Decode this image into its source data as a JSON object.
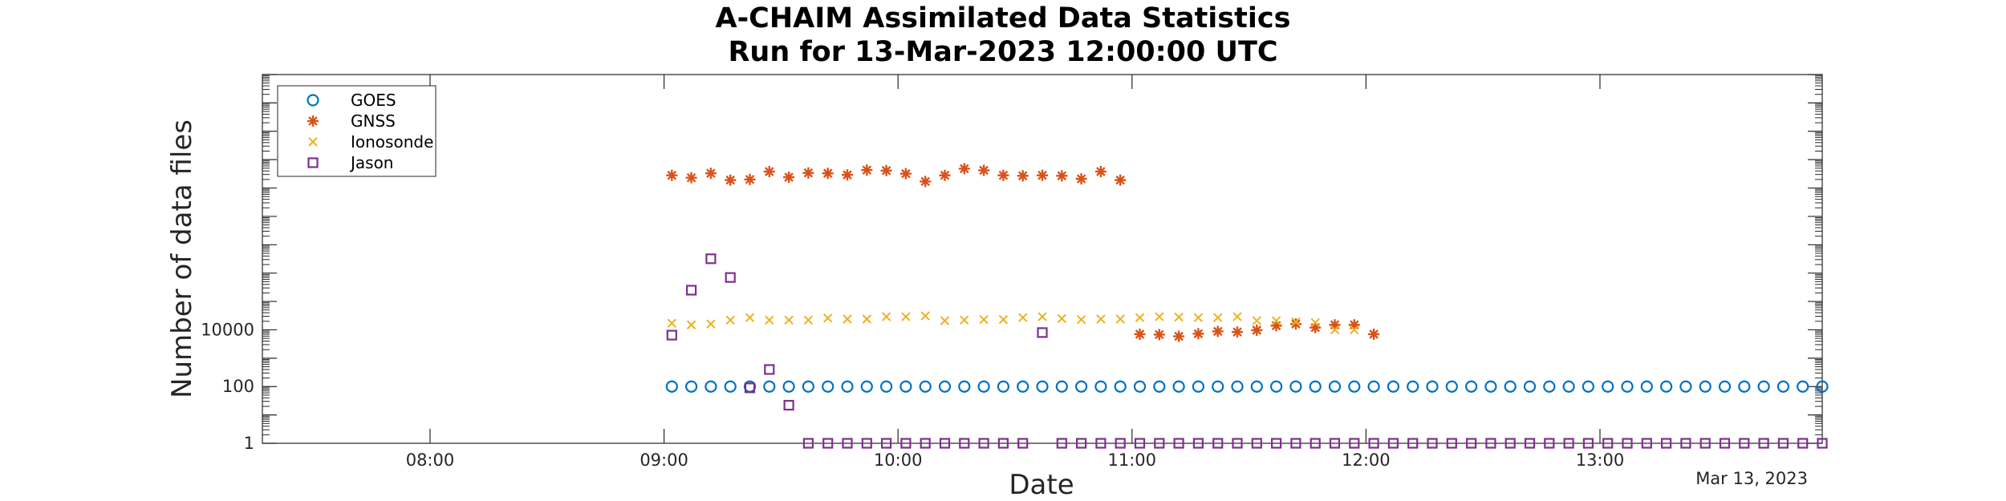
{
  "chart_data": {
    "type": "scatter",
    "title": [
      "A-CHAIM Assimilated Data Statistics",
      "Run for 13-Mar-2023 12:00:00 UTC"
    ],
    "xlabel": "Date",
    "ylabel": "Number of data files",
    "date_label": "Mar 13, 2023",
    "x_ticks": [
      "08:00",
      "09:00",
      "10:00",
      "11:00",
      "12:00",
      "13:00"
    ],
    "y_ticks": [
      "1",
      "100",
      "10000"
    ],
    "xlim": [
      "07:17",
      "13:57"
    ],
    "y_scale": "log",
    "ylim": [
      1,
      10000000000000
    ],
    "legend_position": "top-left",
    "series": [
      {
        "name": "GOES",
        "marker": "circle",
        "color": "#0072BD",
        "x": [
          "09:02",
          "09:07",
          "09:12",
          "09:17",
          "09:22",
          "09:27",
          "09:32",
          "09:37",
          "09:42",
          "09:47",
          "09:52",
          "09:57",
          "10:02",
          "10:07",
          "10:12",
          "10:17",
          "10:22",
          "10:27",
          "10:32",
          "10:37",
          "10:42",
          "10:47",
          "10:52",
          "10:57",
          "11:02",
          "11:07",
          "11:12",
          "11:17",
          "11:22",
          "11:27",
          "11:32",
          "11:37",
          "11:42",
          "11:47",
          "11:52",
          "11:57",
          "12:02",
          "12:07",
          "12:12",
          "12:17",
          "12:22",
          "12:27",
          "12:32",
          "12:37",
          "12:42",
          "12:47",
          "12:52",
          "12:57",
          "13:02",
          "13:07",
          "13:12",
          "13:17",
          "13:22",
          "13:27",
          "13:32",
          "13:37",
          "13:42",
          "13:47",
          "13:52",
          "13:57"
        ],
        "y": [
          100,
          100,
          100,
          100,
          100,
          100,
          100,
          100,
          100,
          100,
          100,
          100,
          100,
          100,
          100,
          100,
          100,
          100,
          100,
          100,
          100,
          100,
          100,
          100,
          100,
          100,
          100,
          100,
          100,
          100,
          100,
          100,
          100,
          100,
          100,
          100,
          100,
          100,
          100,
          100,
          100,
          100,
          100,
          100,
          100,
          100,
          100,
          100,
          100,
          100,
          100,
          100,
          100,
          100,
          100,
          100,
          100,
          100,
          100,
          100
        ]
      },
      {
        "name": "GNSS",
        "marker": "asterisk",
        "color": "#D95319",
        "x": [
          "09:02",
          "09:07",
          "09:12",
          "09:17",
          "09:22",
          "09:27",
          "09:32",
          "09:37",
          "09:42",
          "09:47",
          "09:52",
          "09:57",
          "10:02",
          "10:07",
          "10:12",
          "10:17",
          "10:22",
          "10:27",
          "10:32",
          "10:37",
          "10:42",
          "10:47",
          "10:52",
          "10:57",
          "11:02",
          "11:07",
          "11:12",
          "11:17",
          "11:22",
          "11:27",
          "11:32",
          "11:37",
          "11:42",
          "11:47",
          "11:52",
          "11:57",
          "12:02"
        ],
        "y": [
          2800000000,
          2300000000,
          3300000000,
          1900000000,
          2000000000,
          3800000000,
          2400000000,
          3400000000,
          3300000000,
          2900000000,
          4300000000,
          4100000000,
          3200000000,
          1700000000,
          2800000000,
          4800000000,
          4200000000,
          2800000000,
          2700000000,
          2800000000,
          2700000000,
          2100000000,
          3800000000,
          1900000000,
          7000,
          6800,
          5900,
          7300,
          8800,
          8400,
          9700,
          14000,
          16000,
          12000,
          15000,
          15000,
          7000
        ]
      },
      {
        "name": "Ionosonde",
        "marker": "x",
        "color": "#EDB120",
        "x": [
          "09:02",
          "09:07",
          "09:12",
          "09:17",
          "09:22",
          "09:27",
          "09:32",
          "09:37",
          "09:42",
          "09:47",
          "09:52",
          "09:57",
          "10:02",
          "10:07",
          "10:12",
          "10:17",
          "10:22",
          "10:27",
          "10:32",
          "10:37",
          "10:42",
          "10:47",
          "10:52",
          "10:57",
          "11:02",
          "11:07",
          "11:12",
          "11:17",
          "11:22",
          "11:27",
          "11:32",
          "11:37",
          "11:42",
          "11:47",
          "11:52",
          "11:57"
        ],
        "y": [
          17000,
          15000,
          16000,
          22000,
          27000,
          22000,
          22000,
          22000,
          26000,
          24000,
          24000,
          29000,
          29000,
          31000,
          21000,
          22000,
          23000,
          23000,
          27000,
          29000,
          25000,
          23000,
          24000,
          24000,
          27000,
          29000,
          28000,
          27000,
          27000,
          29000,
          21000,
          21000,
          19000,
          18000,
          10000,
          10000
        ]
      },
      {
        "name": "Jason",
        "marker": "square",
        "color": "#7E2F8E",
        "x": [
          "09:02",
          "09:07",
          "09:12",
          "09:17",
          "09:22",
          "09:27",
          "09:32",
          "09:37",
          "09:42",
          "09:47",
          "09:52",
          "09:57",
          "10:02",
          "10:07",
          "10:12",
          "10:17",
          "10:22",
          "10:27",
          "10:32",
          "10:37",
          "10:42",
          "10:47",
          "10:52",
          "10:57",
          "11:02",
          "11:07",
          "11:12",
          "11:17",
          "11:22",
          "11:27",
          "11:32",
          "11:37",
          "11:42",
          "11:47",
          "11:52",
          "11:57",
          "12:02",
          "12:07",
          "12:12",
          "12:17",
          "12:22",
          "12:27",
          "12:32",
          "12:37",
          "12:42",
          "12:47",
          "12:52",
          "12:57",
          "13:02",
          "13:07",
          "13:12",
          "13:17",
          "13:22",
          "13:27",
          "13:32",
          "13:37",
          "13:42",
          "13:47",
          "13:52",
          "13:57"
        ],
        "y": [
          6500,
          250000,
          3200000,
          700000,
          90,
          400,
          22,
          1,
          1,
          1,
          1,
          1,
          1,
          1,
          1,
          1,
          1,
          1,
          1,
          8000,
          1,
          1,
          1,
          1,
          1,
          1,
          1,
          1,
          1,
          1,
          1,
          1,
          1,
          1,
          1,
          1,
          1,
          1,
          1,
          1,
          1,
          1,
          1,
          1,
          1,
          1,
          1,
          1,
          1,
          1,
          1,
          1,
          1,
          1,
          1,
          1,
          1,
          1,
          1,
          1
        ]
      }
    ]
  }
}
